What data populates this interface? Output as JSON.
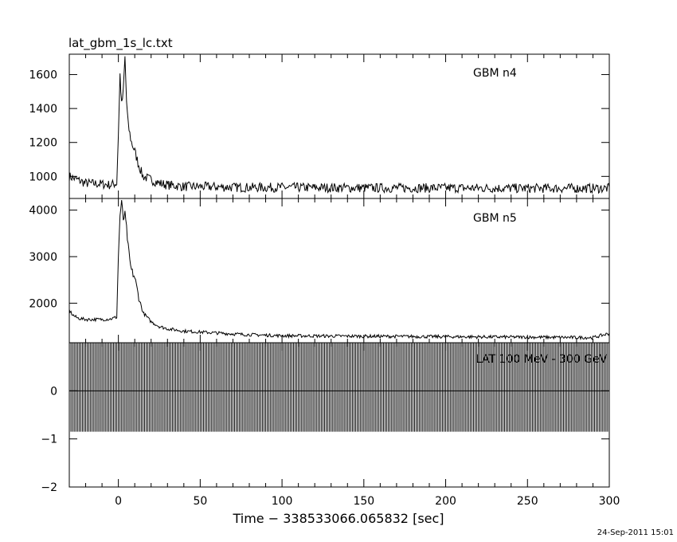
{
  "title": "lat_gbm_1s_lc.txt",
  "footer_timestamp": "24-Sep-2011 15:01",
  "colors": {
    "line": "#000000",
    "background": "#ffffff"
  },
  "chart_data": [
    {
      "type": "line",
      "panel_label": "GBM n4",
      "x_range": [
        -30,
        300
      ],
      "ylim": [
        870,
        1720
      ],
      "y_ticks": [
        1000,
        1200,
        1400,
        1600
      ],
      "y_tick_labels": [
        "1000",
        "1200",
        "1400",
        "1600"
      ],
      "baseline_before": 960,
      "baseline_after": 935,
      "peaks": [
        {
          "x": 0,
          "y": 1600
        },
        {
          "x": 3.5,
          "y": 1700
        }
      ],
      "series": [
        {
          "x": [
            -30,
            -20,
            -10,
            -5,
            -1,
            0,
            1,
            2,
            3,
            4,
            5,
            6,
            8,
            10,
            12,
            15,
            20,
            25,
            30,
            40,
            50,
            75,
            100,
            150,
            200,
            250,
            300
          ],
          "values": [
            1000,
            960,
            955,
            950,
            960,
            1250,
            1600,
            1420,
            1500,
            1700,
            1440,
            1300,
            1200,
            1150,
            1080,
            1000,
            980,
            960,
            950,
            940,
            940,
            935,
            935,
            932,
            932,
            930,
            930
          ]
        }
      ]
    },
    {
      "type": "line",
      "panel_label": "GBM n5",
      "x_range": [
        -30,
        300
      ],
      "ylim": [
        1150,
        4250
      ],
      "y_ticks": [
        2000,
        3000,
        4000
      ],
      "y_tick_labels": [
        "2000",
        "3000",
        "4000"
      ],
      "series": [
        {
          "x": [
            -30,
            -28,
            -25,
            -20,
            -10,
            -5,
            -1,
            0,
            1,
            2,
            3,
            4,
            5,
            6,
            7,
            8,
            10,
            12,
            15,
            20,
            25,
            30,
            40,
            50,
            75,
            100,
            150,
            200,
            250,
            290,
            300
          ],
          "values": [
            1850,
            1750,
            1680,
            1650,
            1650,
            1660,
            1700,
            3000,
            3900,
            4150,
            3800,
            3900,
            3600,
            3200,
            2900,
            2700,
            2550,
            2200,
            1800,
            1600,
            1500,
            1450,
            1400,
            1380,
            1330,
            1300,
            1290,
            1280,
            1270,
            1260,
            1350
          ]
        }
      ]
    },
    {
      "type": "bar",
      "panel_label": "LAT 100 MeV - 300 GeV",
      "x_range": [
        -30,
        300
      ],
      "ylim": [
        -2,
        1
      ],
      "y_ticks": [
        -2,
        -1,
        0
      ],
      "y_tick_labels": [
        "−2",
        "−1",
        "0"
      ],
      "values_description_x_step": 1,
      "series": [
        {
          "value": 0,
          "error_plus": 1,
          "error_minus": 0.85
        }
      ]
    }
  ],
  "x_axis": {
    "label": "Time − 338533066.065832 [sec]",
    "ticks": [
      0,
      50,
      100,
      150,
      200,
      250,
      300
    ],
    "tick_labels": [
      "0",
      "50",
      "100",
      "150",
      "200",
      "250",
      "300"
    ]
  }
}
